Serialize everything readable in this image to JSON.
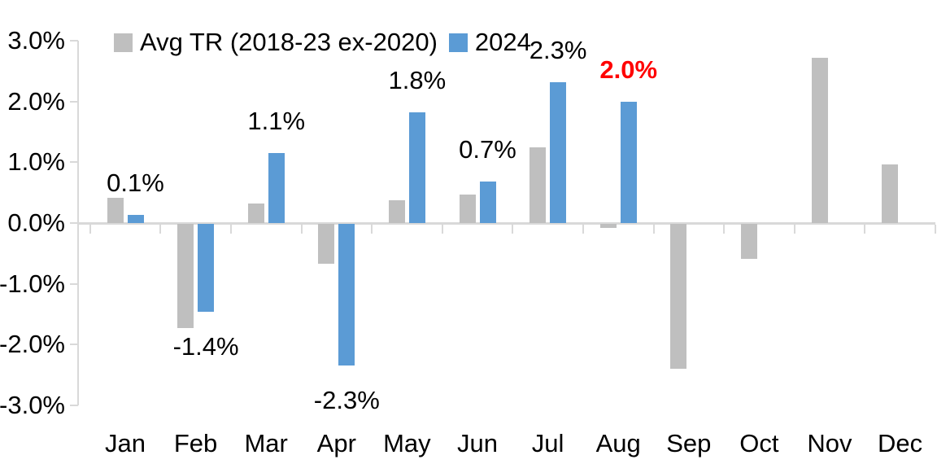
{
  "legend": {
    "series1_label": "Avg TR (2018-23 ex-2020)",
    "series2_label": "2024"
  },
  "colors": {
    "avg_tr_gray": "#bfbfbf",
    "y2024_blue": "#5b9bd5",
    "axis_gray": "#d9d9d9",
    "text_black": "#000000",
    "highlight_red": "#ff0000"
  },
  "chart_data": {
    "type": "bar",
    "categories": [
      "Jan",
      "Feb",
      "Mar",
      "Apr",
      "May",
      "Jun",
      "Jul",
      "Aug",
      "Sep",
      "Oct",
      "Nov",
      "Dec"
    ],
    "series": [
      {
        "name": "Avg TR (2018-23 ex-2020)",
        "color": "#bfbfbf",
        "values": [
          0.42,
          -1.72,
          0.32,
          -0.65,
          0.37,
          0.47,
          1.25,
          -0.07,
          -2.38,
          -0.57,
          2.72,
          0.97
        ]
      },
      {
        "name": "2024",
        "color": "#5b9bd5",
        "values": [
          0.13,
          -1.45,
          1.15,
          -2.33,
          1.82,
          0.68,
          2.32,
          2.0,
          null,
          null,
          null,
          null
        ],
        "data_labels": [
          "0.1%",
          "-1.4%",
          "1.1%",
          "-2.3%",
          "1.8%",
          "0.7%",
          "2.3%",
          "2.0%",
          null,
          null,
          null,
          null
        ],
        "highlight_label_index": 7
      }
    ],
    "y_ticks": [
      {
        "label": "3.0%",
        "value": 3
      },
      {
        "label": "2.0%",
        "value": 2
      },
      {
        "label": "1.0%",
        "value": 1
      },
      {
        "label": "0.0%",
        "value": 0
      },
      {
        "label": "-1.0%",
        "value": -1
      },
      {
        "label": "-2.0%",
        "value": -2
      },
      {
        "label": "-3.0%",
        "value": -3
      }
    ],
    "ylim": [
      -3,
      3
    ],
    "grid": false,
    "legend_position": "top"
  }
}
